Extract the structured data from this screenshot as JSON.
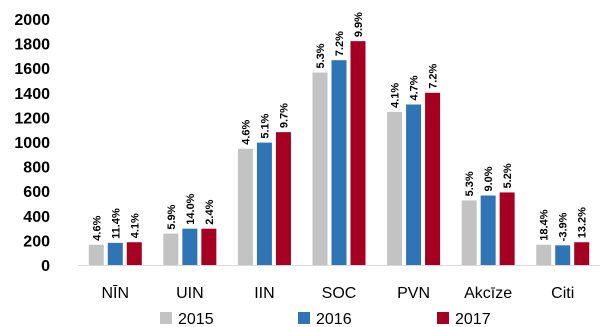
{
  "chart_data": {
    "type": "bar",
    "categories": [
      "NĪN",
      "UIN",
      "IIN",
      "SOC",
      "PVN",
      "Akcīze",
      "Citi"
    ],
    "series": [
      {
        "name": "2015",
        "color": "#c3c3c3",
        "values": [
          165,
          255,
          945,
          1565,
          1245,
          525,
          165
        ],
        "labels": [
          "4.6%",
          "5.9%",
          "4.6%",
          "5.3%",
          "4.1%",
          "5.3%",
          "18.4%"
        ]
      },
      {
        "name": "2016",
        "color": "#2f75b5",
        "values": [
          180,
          295,
          995,
          1665,
          1305,
          565,
          160
        ],
        "labels": [
          "11.4%",
          "14.0%",
          "5.1%",
          "7.2%",
          "4.7%",
          "9.0%",
          "-3.9%"
        ]
      },
      {
        "name": "2017",
        "color": "#a50021",
        "values": [
          185,
          295,
          1080,
          1820,
          1400,
          590,
          185
        ],
        "labels": [
          "4.1%",
          "2.4%",
          "9.7%",
          "9.9%",
          "7.2%",
          "5.2%",
          "13.2%"
        ]
      }
    ],
    "yticks": [
      0,
      200,
      400,
      600,
      800,
      1000,
      1200,
      1400,
      1600,
      1800,
      2000
    ],
    "ylim": [
      0,
      2000
    ],
    "grid": false,
    "legend": "bottom"
  }
}
